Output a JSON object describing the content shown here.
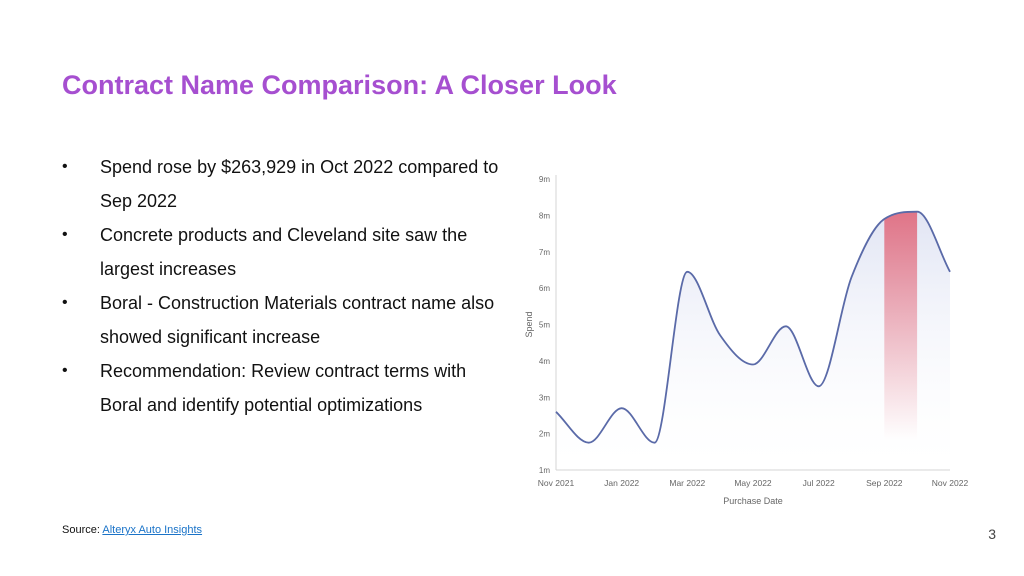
{
  "slide": {
    "title": "Contract Name Comparison: A Closer Look",
    "bullets": [
      "Spend rose by $263,929 in Oct 2022 compared to Sep 2022",
      "Concrete products and Cleveland site saw the largest increases",
      "Boral - Construction Materials contract name also showed significant increase",
      "Recommendation: Review contract terms with Boral and identify potential optimizations"
    ],
    "bullet_symbol": "•",
    "source_label": "Source:",
    "source_link": "Alteryx Auto Insights",
    "page_number": "3"
  },
  "colors": {
    "title": "#a64fd0",
    "line": "#5a6aa8",
    "area_fill": "#e8ebf6",
    "highlight": "#e0566a",
    "link": "#1a73c8"
  },
  "chart_data": {
    "type": "area",
    "xlabel": "Purchase Date",
    "ylabel": "Spend",
    "y_ticks": [
      "1m",
      "2m",
      "3m",
      "4m",
      "5m",
      "6m",
      "7m",
      "8m",
      "9m"
    ],
    "x_ticks": [
      "Nov 2021",
      "Jan 2022",
      "Mar 2022",
      "May 2022",
      "Jul 2022",
      "Sep 2022",
      "Nov 2022"
    ],
    "ylim": [
      1,
      9
    ],
    "unit": "m",
    "grid": false,
    "series": [
      {
        "x": [
          "Nov 2021",
          "Dec 2021",
          "Jan 2022",
          "Feb 2022",
          "Mar 2022",
          "Apr 2022",
          "May 2022",
          "Jun 2022",
          "Jul 2022",
          "Aug 2022",
          "Sep 2022",
          "Oct 2022",
          "Nov 2022"
        ],
        "values": [
          2.6,
          1.75,
          2.7,
          1.75,
          6.45,
          4.7,
          3.9,
          4.95,
          3.3,
          6.3,
          7.9,
          8.1,
          6.45
        ]
      }
    ],
    "highlight": {
      "from": "Sep 2022",
      "to": "Oct 2022"
    }
  }
}
